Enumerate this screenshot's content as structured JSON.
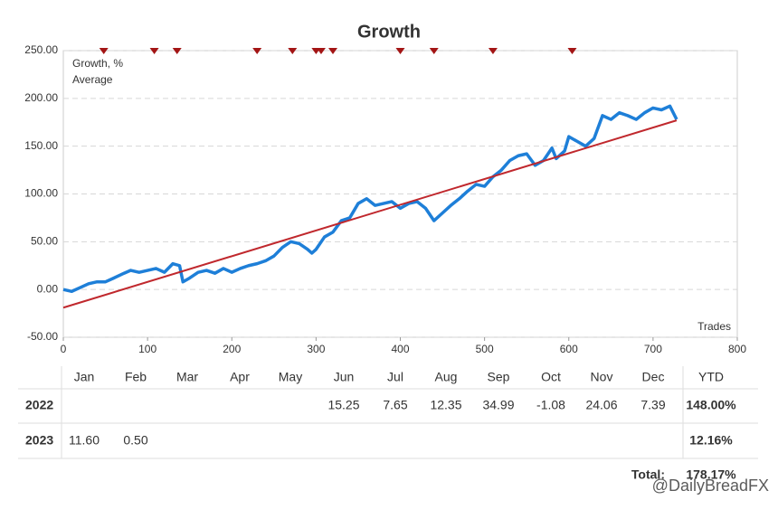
{
  "chart_data": {
    "type": "line",
    "title": "Growth",
    "x_label": "Trades",
    "xlim": [
      0,
      800
    ],
    "xticks": [
      0,
      100,
      200,
      300,
      400,
      500,
      600,
      700,
      800
    ],
    "ylim": [
      -50,
      250
    ],
    "yticks": [
      {
        "value": -50,
        "label": "-50.00"
      },
      {
        "value": 0,
        "label": "0.00"
      },
      {
        "value": 50,
        "label": "50.00"
      },
      {
        "value": 100,
        "label": "100.00"
      },
      {
        "value": 150,
        "label": "150.00"
      },
      {
        "value": 200,
        "label": "200.00"
      },
      {
        "value": 250,
        "label": "250.00"
      }
    ],
    "grid": true,
    "legend": "top-left",
    "series": [
      {
        "name": "Growth, %",
        "color": "#1e7fd8",
        "x": [
          0,
          10,
          20,
          30,
          40,
          50,
          60,
          72,
          80,
          90,
          100,
          110,
          120,
          130,
          138,
          142,
          150,
          160,
          170,
          180,
          190,
          200,
          210,
          220,
          230,
          240,
          250,
          260,
          270,
          280,
          290,
          295,
          300,
          310,
          320,
          330,
          340,
          350,
          360,
          370,
          380,
          390,
          400,
          410,
          420,
          430,
          440,
          450,
          460,
          470,
          480,
          490,
          500,
          510,
          520,
          530,
          540,
          550,
          560,
          570,
          580,
          585,
          595,
          600,
          610,
          620,
          630,
          640,
          650,
          660,
          670,
          680,
          690,
          700,
          710,
          720,
          728
        ],
        "values": [
          0,
          -2,
          2,
          6,
          8,
          8,
          12,
          17,
          20,
          18,
          20,
          22,
          18,
          27,
          25,
          8,
          12,
          18,
          20,
          17,
          22,
          18,
          22,
          25,
          27,
          30,
          35,
          44,
          50,
          48,
          42,
          38,
          42,
          55,
          60,
          72,
          75,
          90,
          95,
          88,
          90,
          92,
          85,
          90,
          92,
          85,
          72,
          80,
          88,
          95,
          103,
          110,
          108,
          118,
          125,
          135,
          140,
          142,
          130,
          135,
          148,
          137,
          145,
          160,
          155,
          150,
          158,
          182,
          178,
          185,
          182,
          178,
          185,
          190,
          188,
          192,
          178
        ]
      },
      {
        "name": "Average",
        "color": "#c0282d",
        "x": [
          0,
          728
        ],
        "values": [
          -19,
          177
        ]
      }
    ],
    "markers_x": [
      48,
      108,
      135,
      230,
      272,
      300,
      306,
      320,
      400,
      440,
      510,
      604
    ],
    "marker_color": "#a31515"
  },
  "table": {
    "header": [
      "Jan",
      "Feb",
      "Mar",
      "Apr",
      "May",
      "Jun",
      "Jul",
      "Aug",
      "Sep",
      "Oct",
      "Nov",
      "Dec",
      "YTD"
    ],
    "rows": [
      [
        "2022",
        null,
        null,
        null,
        null,
        null,
        "15.25",
        "7.65",
        "12.35",
        "34.99",
        "-1.08",
        "24.06",
        "7.39",
        "148.00%"
      ],
      [
        "2023",
        "11.60",
        "0.50",
        null,
        null,
        null,
        null,
        null,
        null,
        null,
        null,
        null,
        null,
        "12.16%"
      ]
    ],
    "total_label": "Total:",
    "total": "178.17%"
  },
  "watermark": "@DailyBreadFX"
}
